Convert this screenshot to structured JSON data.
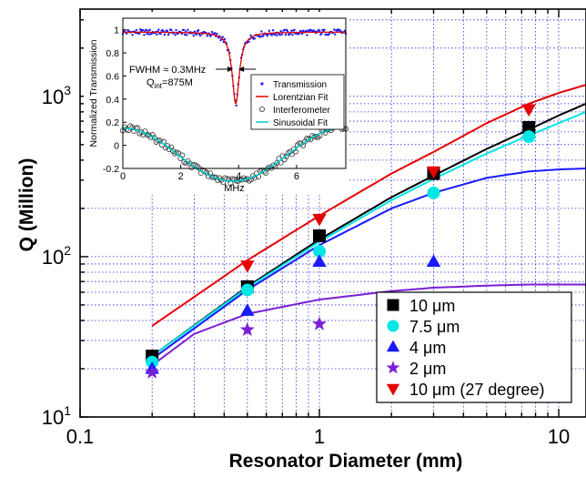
{
  "chart_data": [
    {
      "id": "main",
      "type": "scatter",
      "xlabel": "Resonator Diameter (mm)",
      "ylabel": "Q (Million)",
      "x_scale": "log",
      "y_scale": "log",
      "xlim": [
        0.1,
        13
      ],
      "ylim": [
        10,
        3500
      ],
      "x_tick_labels": [
        {
          "v": 0.1,
          "label": "0.1"
        },
        {
          "v": 1,
          "label": "1"
        },
        {
          "v": 10,
          "label": "10"
        }
      ],
      "y_tick_labels": [
        {
          "v": 10,
          "base": "10",
          "exp": "1"
        },
        {
          "v": 100,
          "base": "10",
          "exp": "2"
        },
        {
          "v": 1000,
          "base": "10",
          "exp": "3"
        }
      ],
      "grid": true,
      "legend_position": "bottom-right",
      "series": [
        {
          "name": "10 μm",
          "marker": "square",
          "color": "#000000",
          "points": [
            [
              0.2,
              24
            ],
            [
              0.5,
              65
            ],
            [
              1.0,
              135
            ],
            [
              3.0,
              330
            ],
            [
              7.5,
              640
            ]
          ],
          "curve": [
            [
              0.2,
              24
            ],
            [
              0.5,
              65
            ],
            [
              1,
              128
            ],
            [
              2,
              235
            ],
            [
              3,
              320
            ],
            [
              5,
              470
            ],
            [
              7.5,
              620
            ],
            [
              10,
              760
            ],
            [
              13,
              900
            ]
          ]
        },
        {
          "name": "7.5 μm",
          "marker": "circle",
          "color": "#00e5e5",
          "points": [
            [
              0.2,
              22
            ],
            [
              0.5,
              62
            ],
            [
              1.0,
              108
            ],
            [
              3.0,
              250
            ],
            [
              7.5,
              560
            ]
          ],
          "curve": [
            [
              0.2,
              24
            ],
            [
              0.5,
              64
            ],
            [
              1,
              124
            ],
            [
              2,
              225
            ],
            [
              3,
              305
            ],
            [
              5,
              440
            ],
            [
              7.5,
              570
            ],
            [
              10,
              680
            ],
            [
              13,
              800
            ]
          ]
        },
        {
          "name": "4 μm",
          "marker": "triangle-up",
          "color": "#1a1aff",
          "points": [
            [
              0.2,
              20
            ],
            [
              0.5,
              46
            ],
            [
              1.0,
              93
            ],
            [
              3.0,
              93
            ]
          ],
          "curve": [
            [
              0.2,
              23
            ],
            [
              0.5,
              62
            ],
            [
              1,
              118
            ],
            [
              2,
              200
            ],
            [
              3,
              250
            ],
            [
              5,
              310
            ],
            [
              7.5,
              340
            ],
            [
              10,
              350
            ],
            [
              13,
              355
            ]
          ]
        },
        {
          "name": "2 μm",
          "marker": "star",
          "color": "#7a1fd6",
          "points": [
            [
              0.2,
              19
            ],
            [
              0.5,
              35
            ],
            [
              1.0,
              38
            ]
          ],
          "curve": [
            [
              0.2,
              21
            ],
            [
              0.3,
              33
            ],
            [
              0.5,
              44
            ],
            [
              1,
              54
            ],
            [
              2,
              61
            ],
            [
              3,
              64
            ],
            [
              5,
              66
            ],
            [
              7.5,
              67
            ],
            [
              13,
              67
            ]
          ]
        },
        {
          "name": "10 μm (27 degree)",
          "marker": "triangle-down",
          "color": "#e60000",
          "points": [
            [
              0.5,
              88
            ],
            [
              1.0,
              172
            ],
            [
              3.0,
              340
            ],
            [
              7.5,
              830
            ]
          ],
          "curve": [
            [
              0.2,
              37
            ],
            [
              0.5,
              95
            ],
            [
              1,
              180
            ],
            [
              2,
              330
            ],
            [
              3,
              450
            ],
            [
              5,
              680
            ],
            [
              7.5,
              900
            ],
            [
              10,
              1050
            ],
            [
              13,
              1180
            ]
          ]
        }
      ]
    },
    {
      "id": "inset",
      "type": "scatter",
      "xlabel": "MHz",
      "ylabel": "Normalized Transmission",
      "xlim": [
        0,
        7.7
      ],
      "ylim": [
        -0.2,
        1.1
      ],
      "x_ticks": [
        0,
        2,
        4,
        6
      ],
      "y_ticks": [
        -0.2,
        0,
        0.2,
        0.4,
        0.6,
        0.8,
        1
      ],
      "annotations": [
        "FWHM ≈ 0.3MHz",
        "Q",
        "int",
        "=875M"
      ],
      "legend": [
        "Transmission",
        "Lorentzian Fit",
        "Interferometer",
        "Sinusoidal Fit"
      ],
      "series": [
        {
          "name": "Transmission",
          "marker": "dot",
          "color": "#1a1aff",
          "model": "lorentzian",
          "params": {
            "baseline": 0.98,
            "depth": 0.62,
            "center": 3.9,
            "fwhm": 0.3
          }
        },
        {
          "name": "Lorentzian Fit",
          "line": true,
          "color": "#e60000",
          "model": "lorentzian",
          "params": {
            "baseline": 0.98,
            "depth": 0.62,
            "center": 3.9,
            "fwhm": 0.3
          }
        },
        {
          "name": "Interferometer",
          "marker": "open-circle",
          "color": "#333333",
          "model": "sinusoid",
          "params": {
            "mean": -0.08,
            "amp": 0.23,
            "period": 7.6,
            "phase_x": 0.0
          }
        },
        {
          "name": "Sinusoidal Fit",
          "line": true,
          "color": "#00cccc",
          "model": "sinusoid",
          "params": {
            "mean": -0.08,
            "amp": 0.23,
            "period": 7.6,
            "phase_x": 0.0
          }
        }
      ]
    }
  ]
}
